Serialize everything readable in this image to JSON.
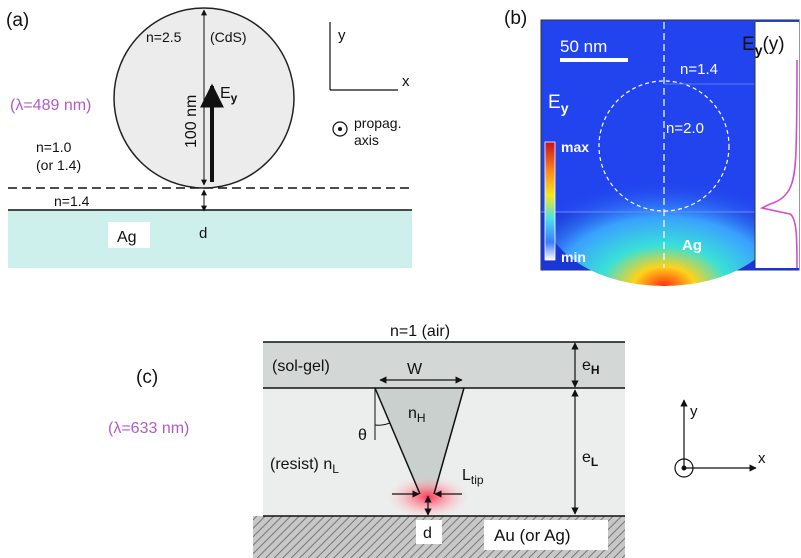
{
  "panel_a": {
    "tag": "(a)",
    "particle_label": "n=2.5",
    "material": "(CdS)",
    "diameter": "100 nm",
    "field_main": "E",
    "field_sub": "y",
    "wavelength": "(λ=489 nm)",
    "upper_index_1": "n=1.0",
    "upper_index_2": "(or 1.4)",
    "lower_index": "n=1.4",
    "metal": "Ag",
    "gap": "d",
    "axis_y": "y",
    "axis_x": "x",
    "propag_1": "propag.",
    "propag_2": "axis",
    "colors": {
      "metal_fill": "#cdf0ec",
      "wavelength": "#b05cc8"
    }
  },
  "panel_b": {
    "tag": "(b)",
    "scale_bar": "50 nm",
    "index_top": "n=1.4",
    "index_particle": "n=2.0",
    "field_main": "E",
    "field_sub": "y",
    "colorbar_max": "max",
    "colorbar_min": "min",
    "metal": "Ag",
    "profile_main": "E",
    "profile_sub": "y",
    "profile_arg": "(y)",
    "colors": {
      "background": "#2244ee",
      "metal": "#1a36d6",
      "profile_line": "#d04fcf"
    }
  },
  "panel_c": {
    "tag": "(c)",
    "top_label": "n=1 (air)",
    "solgel": "(sol-gel)",
    "width": "W",
    "eH_main": "e",
    "eH_sub": "H",
    "wavelength": "(λ=633 nm)",
    "groove_main": "n",
    "groove_sub": "H",
    "theta": "θ",
    "resist": "(resist) n",
    "resist_sub": "L",
    "eL_main": "e",
    "eL_sub": "L",
    "tip_main": "L",
    "tip_sub": "tip",
    "gap": "d",
    "metal": "Au (or Ag)",
    "axis_y": "y",
    "axis_x": "x",
    "colors": {
      "solgel_fill": "#d3d8d6",
      "resist_fill": "#eceeed",
      "wavelength": "#b05cc8"
    }
  }
}
